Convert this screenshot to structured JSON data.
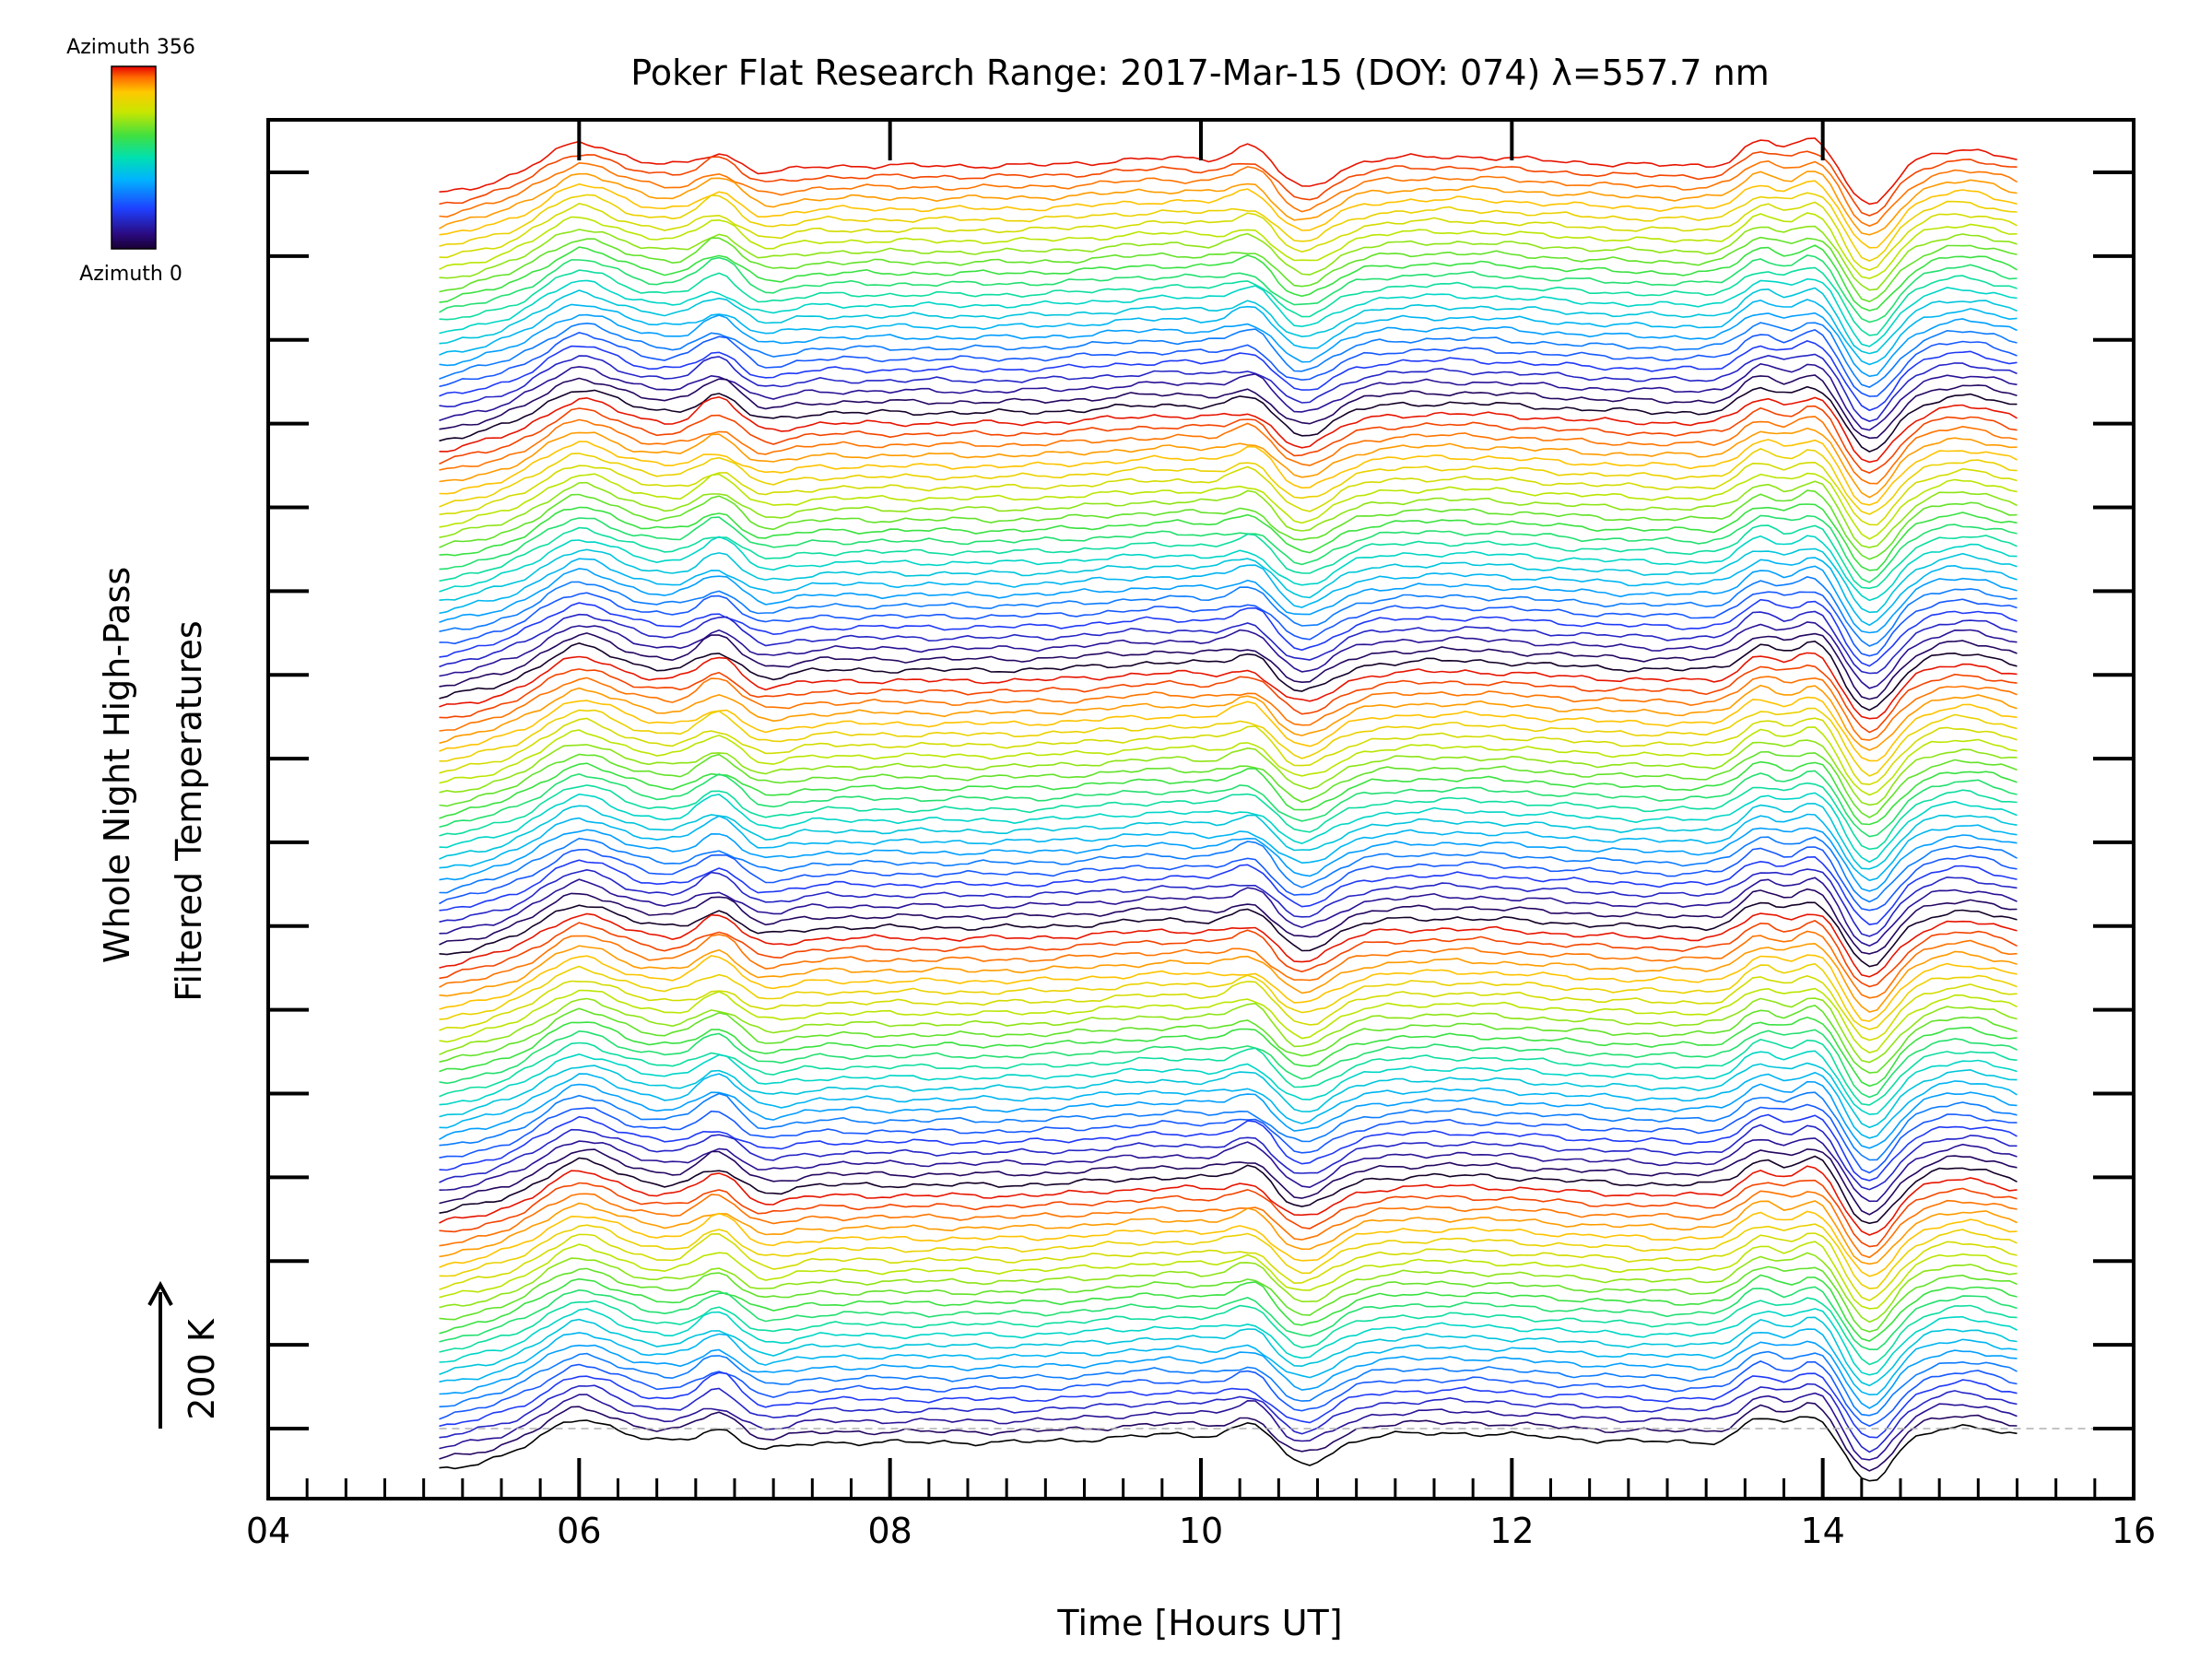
{
  "chart_data": {
    "type": "line",
    "title": "Poker Flat Research Range: 2017-Mar-15 (DOY: 074) λ=557.7 nm",
    "xlabel": "Time [Hours UT]",
    "ylabel_line1": "Whole Night High-Pass",
    "ylabel_line2": "Filtered Temperatures",
    "scale_label": "200 K",
    "xlim": [
      4,
      16
    ],
    "x_ticks": [
      "04",
      "06",
      "08",
      "10",
      "12",
      "14",
      "16"
    ],
    "x_minor_step": 0.25,
    "y_major_tick_count": 16,
    "colorbar": {
      "top_label": "Azimuth 356",
      "bottom_label": "Azimuth 0",
      "colormap": "rainbow (black/purple → blue → cyan → green → yellow → orange → red)"
    },
    "baseline_style": "dashed gray",
    "x_start": 5.1,
    "x_end": 15.25,
    "trace_count": 120,
    "series_note": "Stacked high-pass filtered temperature traces, one per azimuth, colored by azimuth; common features: rise near 05.8–06.1 UT, peak near 06.9 UT, dip near 10.6 UT, peaks near 13.6 and 13.9 UT, minimum near 14.3 UT."
  },
  "colors": {
    "background": "#ffffff",
    "axes": "#000000",
    "baseline": "#b0b0b0"
  }
}
